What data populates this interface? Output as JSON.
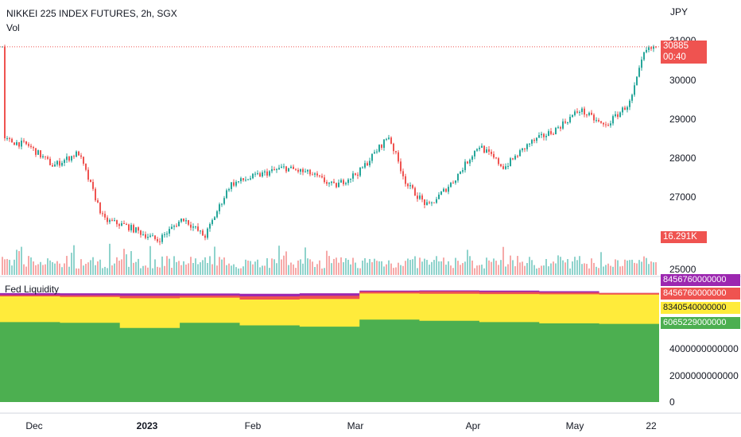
{
  "chart_data": [
    {
      "type": "candlestick",
      "title": "NIKKEI 225 INDEX FUTURES, 2h, SGX",
      "indicator_label": "Vol",
      "currency": "JPY",
      "ylim": [
        24800,
        31500
      ],
      "yticks": [
        "31000",
        "30000",
        "29000",
        "28000",
        "27000",
        "26000",
        "25000"
      ],
      "x_labels": [
        "Dec",
        "2023",
        "Feb",
        "Mar",
        "Apr",
        "May",
        "22"
      ],
      "last_price": "30885",
      "countdown": "00:40",
      "volume_last": "16.291K",
      "price_path": [
        {
          "date": "2022-11-22",
          "price": 28400
        },
        {
          "date": "2022-11-29",
          "price": 28250
        },
        {
          "date": "2022-12-06",
          "price": 27700
        },
        {
          "date": "2022-12-13",
          "price": 28050
        },
        {
          "date": "2022-12-20",
          "price": 26250
        },
        {
          "date": "2022-12-26",
          "price": 26100
        },
        {
          "date": "2023-01-04",
          "price": 25700
        },
        {
          "date": "2023-01-11",
          "price": 26300
        },
        {
          "date": "2023-01-17",
          "price": 25800
        },
        {
          "date": "2023-01-24",
          "price": 27200
        },
        {
          "date": "2023-02-01",
          "price": 27450
        },
        {
          "date": "2023-02-08",
          "price": 27650
        },
        {
          "date": "2023-02-15",
          "price": 27500
        },
        {
          "date": "2023-02-22",
          "price": 27150
        },
        {
          "date": "2023-03-01",
          "price": 27550
        },
        {
          "date": "2023-03-09",
          "price": 28500
        },
        {
          "date": "2023-03-14",
          "price": 27200
        },
        {
          "date": "2023-03-20",
          "price": 26600
        },
        {
          "date": "2023-03-27",
          "price": 27300
        },
        {
          "date": "2023-04-03",
          "price": 28250
        },
        {
          "date": "2023-04-10",
          "price": 27650
        },
        {
          "date": "2023-04-17",
          "price": 28300
        },
        {
          "date": "2023-04-24",
          "price": 28650
        },
        {
          "date": "2023-05-01",
          "price": 29200
        },
        {
          "date": "2023-05-08",
          "price": 28750
        },
        {
          "date": "2023-05-15",
          "price": 29400
        },
        {
          "date": "2023-05-19",
          "price": 30750
        },
        {
          "date": "2023-05-22",
          "price": 30885
        }
      ]
    },
    {
      "type": "area",
      "title": "Fed Liquidity",
      "ylim": [
        0,
        9000000000000
      ],
      "yticks": [
        "4000000000000",
        "2000000000000",
        "0"
      ],
      "last_values": [
        "8456760000000",
        "8456760000000",
        "8340540000000",
        "6065229000000"
      ],
      "series": [
        {
          "name": "",
          "color": "#9c27b0",
          "values": [
            8450000000000,
            8440000000000,
            8430000000000,
            8420000000000,
            8400000000000,
            8440000000000,
            8640000000000,
            8660000000000,
            8640000000000,
            8600000000000,
            8456760000000
          ]
        },
        {
          "name": "",
          "color": "#ef5350",
          "values": [
            8300000000000,
            8280000000000,
            8250000000000,
            8260000000000,
            8200000000000,
            8240000000000,
            8560000000000,
            8580000000000,
            8540000000000,
            8500000000000,
            8456760000000
          ]
        },
        {
          "name": "",
          "color": "#ffeb3b",
          "values": [
            8200000000000,
            8150000000000,
            8050000000000,
            8100000000000,
            7950000000000,
            8000000000000,
            8420000000000,
            8400000000000,
            8380000000000,
            8360000000000,
            8340540000000
          ]
        },
        {
          "name": "",
          "color": "#4caf50",
          "values": [
            6200000000000,
            6150000000000,
            5750000000000,
            6150000000000,
            5950000000000,
            5850000000000,
            6400000000000,
            6300000000000,
            6200000000000,
            6100000000000,
            6065229000000
          ]
        }
      ]
    }
  ],
  "colors": {
    "up": "#26a69a",
    "down": "#ef5350",
    "vol_up": "#8fd3cc",
    "vol_down": "#f6a9a8",
    "price_tag": "#ef5350",
    "axis_text": "#131722"
  }
}
